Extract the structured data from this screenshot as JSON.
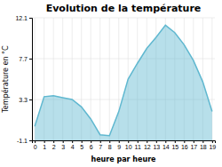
{
  "chart_data": {
    "type": "area",
    "title": "Evolution de la température",
    "xlabel": "heure par heure",
    "ylabel": "Température en °C",
    "x": [
      0,
      1,
      2,
      3,
      4,
      5,
      6,
      7,
      8,
      9,
      10,
      11,
      12,
      13,
      14,
      15,
      16,
      17,
      18,
      19
    ],
    "values": [
      0.4,
      3.6,
      3.7,
      3.5,
      3.3,
      2.5,
      1.2,
      -0.5,
      -0.6,
      2.0,
      5.5,
      7.2,
      8.8,
      10.0,
      11.3,
      10.5,
      9.2,
      7.5,
      5.2,
      2.0
    ],
    "color": "#60b8d0",
    "xlim": [
      -0.3,
      19.3
    ],
    "xticks": [
      0,
      1,
      2,
      3,
      4,
      5,
      6,
      7,
      8,
      9,
      10,
      11,
      12,
      13,
      14,
      15,
      16,
      17,
      18,
      19
    ],
    "ylim": [
      -1.1,
      12.1
    ],
    "yticks": [
      -1.1,
      3.3,
      7.7,
      12.1
    ],
    "grid": true
  }
}
